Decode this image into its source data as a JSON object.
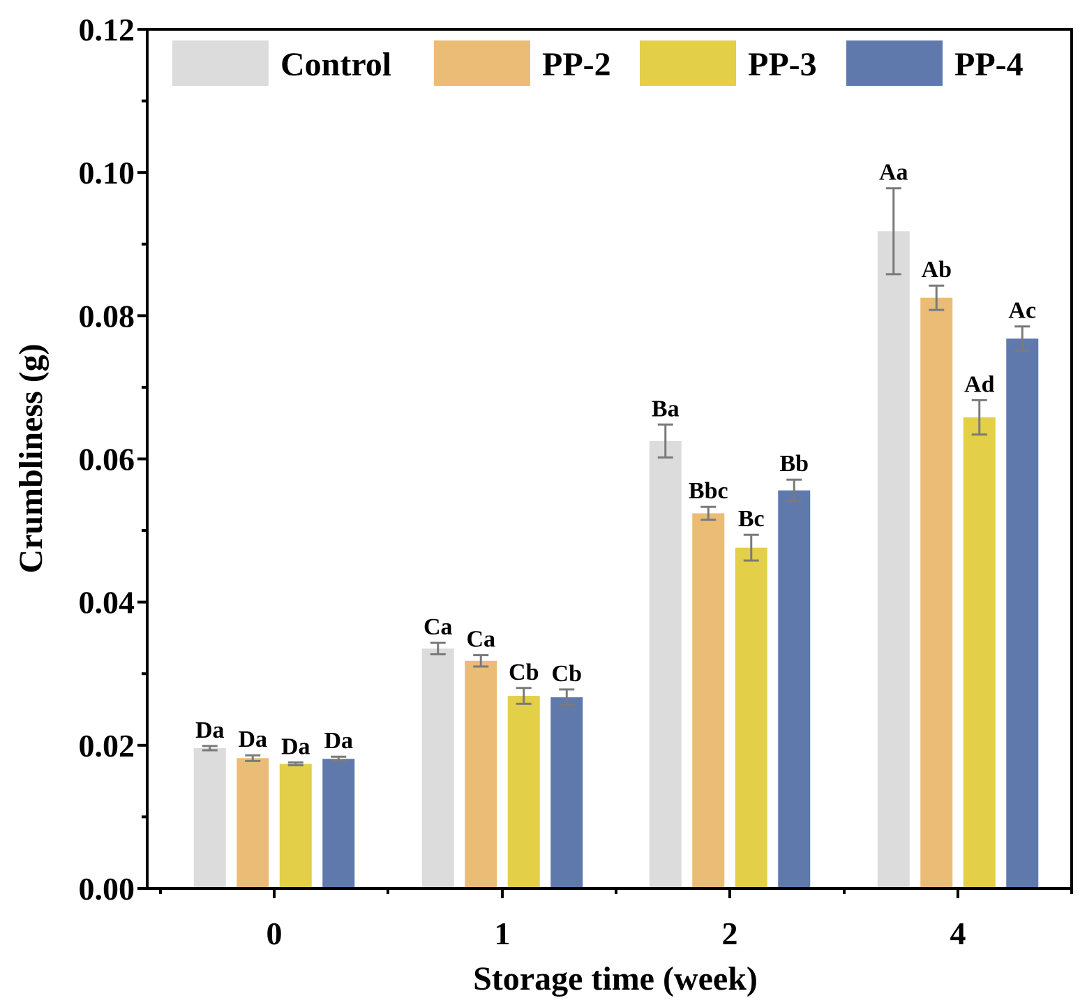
{
  "chart_data": {
    "type": "bar",
    "title": "",
    "xlabel": "Storage time (week)",
    "ylabel": "Crumbliness (g)",
    "ylim": [
      0,
      0.12
    ],
    "yticks": [
      "0.00",
      "0.02",
      "0.04",
      "0.06",
      "0.08",
      "0.10",
      "0.12"
    ],
    "categories": [
      "0",
      "1",
      "2",
      "4"
    ],
    "legend_position": "top",
    "series": [
      {
        "name": "Control",
        "color": "#dcdcdc",
        "values": [
          0.0196,
          0.0335,
          0.0625,
          0.0918
        ],
        "errors": [
          0.0003,
          0.0008,
          0.0023,
          0.006
        ],
        "labels": [
          "Da",
          "Ca",
          "Ba",
          "Aa"
        ]
      },
      {
        "name": "PP-2",
        "color": "#ebbc76",
        "values": [
          0.0182,
          0.0318,
          0.0524,
          0.0825
        ],
        "errors": [
          0.0004,
          0.0008,
          0.0009,
          0.0017
        ],
        "labels": [
          "Da",
          "Ca",
          "Bbc",
          "Ab"
        ]
      },
      {
        "name": "PP-3",
        "color": "#e3cf48",
        "values": [
          0.0174,
          0.0269,
          0.0476,
          0.0658
        ],
        "errors": [
          0.0002,
          0.0011,
          0.0018,
          0.0024
        ],
        "labels": [
          "Da",
          "Cb",
          "Bc",
          "Ad"
        ]
      },
      {
        "name": "PP-4",
        "color": "#5f79ad",
        "values": [
          0.0181,
          0.0267,
          0.0556,
          0.0768
        ],
        "errors": [
          0.0003,
          0.0011,
          0.0015,
          0.0017
        ],
        "labels": [
          "Da",
          "Cb",
          "Bb",
          "Ac"
        ]
      }
    ]
  }
}
